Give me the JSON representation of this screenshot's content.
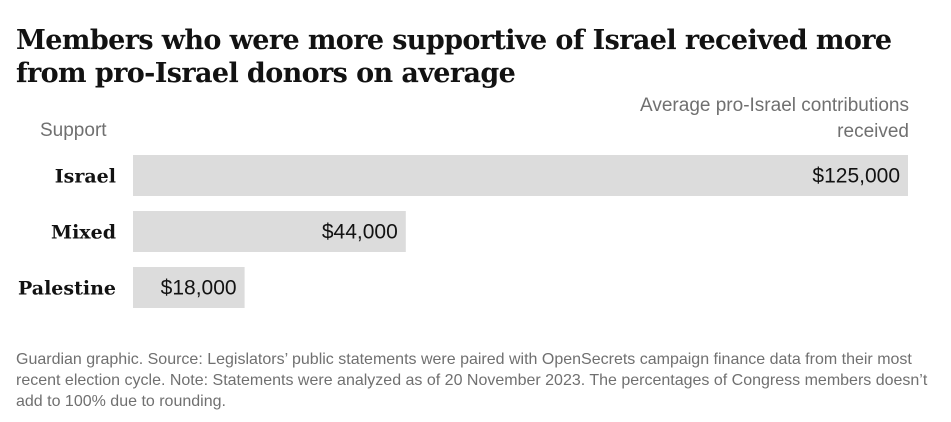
{
  "chart_data": {
    "type": "bar",
    "orientation": "horizontal",
    "title": "Members who were more supportive of Israel received more from pro-Israel donors on average",
    "category_axis_label": "Support",
    "value_axis_label": "Average pro-Israel contributions received",
    "categories": [
      "Israel",
      "Mixed",
      "Palestine"
    ],
    "values": [
      125000,
      44000,
      18000
    ],
    "value_labels": [
      "$125,000",
      "$44,000",
      "$18,000"
    ],
    "xlim": [
      0,
      125000
    ],
    "grid": false,
    "legend": "none",
    "bar_color": "#dcdcdc"
  },
  "footer": {
    "source": "Guardian graphic. Source: Legislators’ public statements were paired with OpenSecrets campaign finance data from their most recent election cycle. Note: Statements were analyzed as of 20 November 2023. The percentages of Congress members doesn’t add to 100% due to rounding."
  }
}
